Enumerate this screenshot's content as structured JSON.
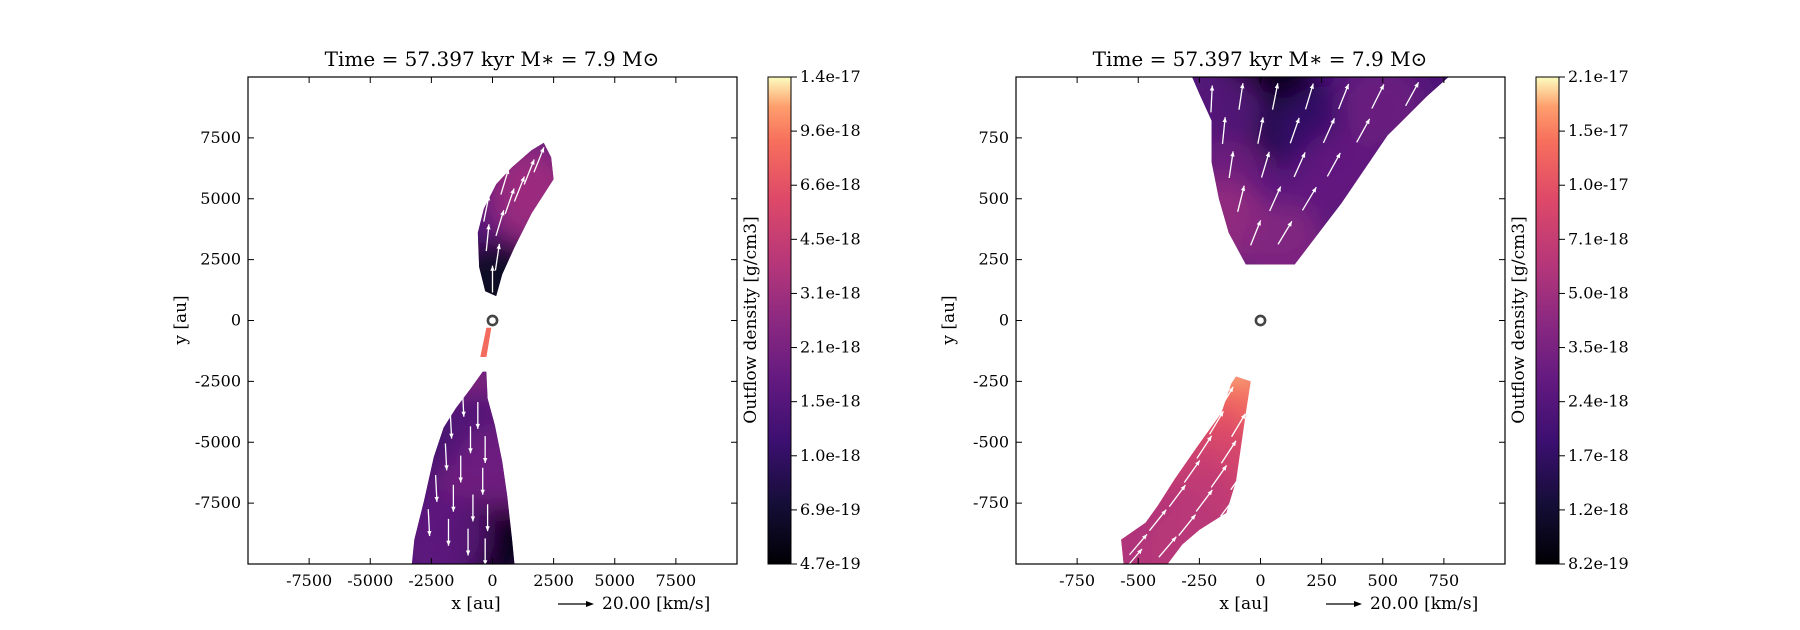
{
  "chart_data": [
    {
      "type": "heatmap",
      "subtype": "outflow-density-map-with-velocity-vectors",
      "title": "Time = 57.397 kyr    M∗ = 7.9 M⊙",
      "xlabel": "x [au]",
      "ylabel": "y [au]",
      "xlim": [
        -10000,
        10000
      ],
      "ylim": [
        -10000,
        10000
      ],
      "xticks": [
        -7500,
        -5000,
        -2500,
        0,
        2500,
        5000,
        7500
      ],
      "yticks": [
        -7500,
        -5000,
        -2500,
        0,
        2500,
        5000,
        7500
      ],
      "colorbar": {
        "label": "Outflow density [g/cm3]",
        "colormap": "magma",
        "scale": "log",
        "range": [
          4.7e-19,
          1.4e-17
        ],
        "tick_labels": [
          "4.7e-19",
          "6.9e-19",
          "1.0e-18",
          "1.5e-18",
          "2.1e-18",
          "3.1e-18",
          "4.5e-18",
          "6.6e-18",
          "9.6e-18",
          "1.4e-17"
        ]
      },
      "reference_vector": "20.00 [km/s]",
      "star_position": [
        0,
        0
      ],
      "lobes": [
        {
          "name": "north",
          "polygon": [
            [
              -300,
              1200
            ],
            [
              -550,
              2200
            ],
            [
              -600,
              3600
            ],
            [
              -350,
              4600
            ],
            [
              150,
              5600
            ],
            [
              800,
              6300
            ],
            [
              1600,
              7000
            ],
            [
              2100,
              7300
            ],
            [
              2400,
              6700
            ],
            [
              2500,
              5800
            ],
            [
              1600,
              4400
            ],
            [
              900,
              3000
            ],
            [
              400,
              1900
            ],
            [
              150,
              1000
            ]
          ],
          "densities": [
            [
              0,
              2200,
              5e-19
            ],
            [
              -100,
              3200,
              9e-19
            ],
            [
              400,
              4600,
              1.8e-18
            ],
            [
              1300,
              6000,
              2.4e-18
            ],
            [
              -400,
              4000,
              1.5e-18
            ],
            [
              1700,
              5000,
              3e-18
            ],
            [
              100,
              1500,
              6e-19
            ]
          ],
          "vectors": [
            [
              0,
              1700,
              0,
              1
            ],
            [
              200,
              2600,
              0.15,
              1
            ],
            [
              -200,
              3400,
              0.1,
              1
            ],
            [
              300,
              4000,
              0.3,
              1
            ],
            [
              -250,
              4600,
              0.2,
              1
            ],
            [
              700,
              4900,
              0.35,
              1
            ],
            [
              1100,
              5400,
              0.4,
              1
            ],
            [
              500,
              5700,
              0.3,
              1
            ],
            [
              1500,
              6100,
              0.4,
              1
            ],
            [
              1900,
              6600,
              0.4,
              1
            ]
          ]
        },
        {
          "name": "gap",
          "polygon": [
            [
              -500,
              -1500
            ],
            [
              -250,
              -300
            ],
            [
              -50,
              -300
            ],
            [
              -250,
              -1500
            ]
          ],
          "densities": [
            [
              -300,
              -900,
              8.5e-18
            ]
          ],
          "vectors": []
        },
        {
          "name": "south",
          "polygon": [
            [
              -400,
              -2100
            ],
            [
              -900,
              -2800
            ],
            [
              -1500,
              -3600
            ],
            [
              -2000,
              -4400
            ],
            [
              -2400,
              -5600
            ],
            [
              -2800,
              -7400
            ],
            [
              -3200,
              -9000
            ],
            [
              -3300,
              -10000
            ],
            [
              900,
              -10000
            ],
            [
              800,
              -9000
            ],
            [
              600,
              -7200
            ],
            [
              400,
              -5800
            ],
            [
              100,
              -4300
            ],
            [
              -200,
              -3200
            ],
            [
              -250,
              -2100
            ]
          ],
          "densities": [
            [
              -1000,
              -3500,
              2.5e-18
            ],
            [
              -1600,
              -5200,
              9e-19
            ],
            [
              -2500,
              -7000,
              1.3e-18
            ],
            [
              -400,
              -6800,
              2.2e-18
            ],
            [
              0,
              -8800,
              5e-19
            ],
            [
              -2000,
              -8800,
              1.6e-18
            ],
            [
              -700,
              -4600,
              1.4e-18
            ],
            [
              300,
              -6000,
              1.9e-18
            ]
          ],
          "vectors": [
            [
              -1200,
              -3400,
              0.05,
              -1
            ],
            [
              -600,
              -3900,
              0,
              -1
            ],
            [
              -1700,
              -4300,
              0.05,
              -1
            ],
            [
              -900,
              -4900,
              0,
              -1
            ],
            [
              -300,
              -5300,
              0,
              -1
            ],
            [
              -1900,
              -5600,
              0.05,
              -1
            ],
            [
              -1300,
              -6100,
              0,
              -1
            ],
            [
              -400,
              -6600,
              0,
              -1
            ],
            [
              -2300,
              -6900,
              0.05,
              -1
            ],
            [
              -1600,
              -7300,
              0,
              -1
            ],
            [
              -800,
              -7700,
              0,
              -1
            ],
            [
              -200,
              -8100,
              0,
              -1
            ],
            [
              -2600,
              -8300,
              0.05,
              -1
            ],
            [
              -1800,
              -8700,
              0,
              -1
            ],
            [
              -1000,
              -9100,
              0,
              -1
            ],
            [
              -300,
              -9500,
              0,
              -1
            ]
          ]
        }
      ]
    },
    {
      "type": "heatmap",
      "subtype": "outflow-density-map-with-velocity-vectors",
      "title": "Time = 57.397 kyr    M∗ = 7.9 M⊙",
      "xlabel": "x [au]",
      "ylabel": "y [au]",
      "xlim": [
        -1000,
        1000
      ],
      "ylim": [
        -1000,
        1000
      ],
      "xticks": [
        -750,
        -500,
        -250,
        0,
        250,
        500,
        750
      ],
      "yticks": [
        -750,
        -500,
        -250,
        0,
        250,
        500,
        750
      ],
      "colorbar": {
        "label": "Outflow density [g/cm3]",
        "colormap": "magma",
        "scale": "log",
        "range": [
          8.2e-19,
          2.1e-17
        ],
        "tick_labels": [
          "8.2e-19",
          "1.2e-18",
          "1.7e-18",
          "2.4e-18",
          "3.5e-18",
          "5.0e-18",
          "7.1e-18",
          "1.0e-17",
          "1.5e-17",
          "2.1e-17"
        ]
      },
      "reference_vector": "20.00 [km/s]",
      "star_position": [
        0,
        0
      ],
      "lobes": [
        {
          "name": "north",
          "polygon": [
            [
              -280,
              1000
            ],
            [
              -250,
              930
            ],
            [
              -200,
              820
            ],
            [
              -200,
              650
            ],
            [
              -170,
              500
            ],
            [
              -130,
              360
            ],
            [
              -60,
              230
            ],
            [
              140,
              230
            ],
            [
              330,
              480
            ],
            [
              520,
              760
            ],
            [
              680,
              920
            ],
            [
              770,
              1000
            ]
          ],
          "densities": [
            [
              0,
              980,
              8.2e-19
            ],
            [
              100,
              880,
              1e-18
            ],
            [
              -30,
              760,
              1.4e-18
            ],
            [
              250,
              780,
              1.8e-18
            ],
            [
              -180,
              860,
              2.4e-18
            ],
            [
              -120,
              560,
              3.2e-18
            ],
            [
              50,
              450,
              2.6e-18
            ],
            [
              330,
              600,
              2.8e-18
            ],
            [
              500,
              880,
              3e-18
            ],
            [
              -150,
              400,
              4.5e-18
            ],
            [
              100,
              300,
              3.8e-18
            ]
          ],
          "vectors": [
            [
              -200,
              910,
              0.05,
              1
            ],
            [
              -80,
              920,
              0.15,
              1
            ],
            [
              60,
              920,
              0.2,
              1
            ],
            [
              200,
              920,
              0.3,
              1
            ],
            [
              340,
              920,
              0.4,
              1
            ],
            [
              480,
              920,
              0.5,
              1
            ],
            [
              620,
              930,
              0.55,
              1
            ],
            [
              -150,
              780,
              0.1,
              1
            ],
            [
              0,
              780,
              0.2,
              1
            ],
            [
              140,
              780,
              0.35,
              1
            ],
            [
              280,
              780,
              0.45,
              1
            ],
            [
              420,
              780,
              0.55,
              1
            ],
            [
              -120,
              640,
              0.15,
              1
            ],
            [
              20,
              640,
              0.3,
              1
            ],
            [
              160,
              640,
              0.45,
              1
            ],
            [
              300,
              640,
              0.55,
              1
            ],
            [
              -80,
              500,
              0.25,
              1
            ],
            [
              60,
              500,
              0.45,
              1
            ],
            [
              200,
              500,
              0.6,
              1
            ],
            [
              -20,
              360,
              0.4,
              1
            ],
            [
              100,
              360,
              0.6,
              1
            ]
          ]
        },
        {
          "name": "south",
          "polygon": [
            [
              -100,
              -230
            ],
            [
              -40,
              -250
            ],
            [
              -60,
              -380
            ],
            [
              -80,
              -520
            ],
            [
              -100,
              -660
            ],
            [
              -140,
              -790
            ],
            [
              -250,
              -860
            ],
            [
              -320,
              -920
            ],
            [
              -380,
              -1000
            ],
            [
              -560,
              -1000
            ],
            [
              -570,
              -900
            ],
            [
              -470,
              -830
            ],
            [
              -420,
              -760
            ],
            [
              -350,
              -650
            ],
            [
              -260,
              -520
            ],
            [
              -160,
              -380
            ],
            [
              -120,
              -260
            ]
          ],
          "densities": [
            [
              -150,
              -300,
              1.8e-17
            ],
            [
              -100,
              -420,
              1.3e-17
            ],
            [
              -200,
              -500,
              1e-17
            ],
            [
              -120,
              -620,
              8.5e-18
            ],
            [
              -300,
              -650,
              7.5e-18
            ],
            [
              -230,
              -780,
              6.6e-18
            ],
            [
              -400,
              -850,
              6e-18
            ],
            [
              -500,
              -950,
              5.6e-18
            ],
            [
              -300,
              -950,
              6.2e-18
            ]
          ],
          "vectors": [
            [
              -140,
              -320,
              0.6,
              1
            ],
            [
              -180,
              -420,
              0.6,
              1
            ],
            [
              -90,
              -430,
              0.6,
              1
            ],
            [
              -230,
              -520,
              0.65,
              1
            ],
            [
              -130,
              -540,
              0.65,
              1
            ],
            [
              -280,
              -620,
              0.7,
              1
            ],
            [
              -170,
              -640,
              0.7,
              1
            ],
            [
              -90,
              -650,
              0.7,
              1
            ],
            [
              -340,
              -720,
              0.75,
              1
            ],
            [
              -230,
              -740,
              0.75,
              1
            ],
            [
              -130,
              -760,
              0.75,
              1
            ],
            [
              -420,
              -820,
              0.8,
              1
            ],
            [
              -300,
              -840,
              0.8,
              1
            ],
            [
              -190,
              -860,
              0.8,
              1
            ],
            [
              -500,
              -920,
              0.85,
              1
            ],
            [
              -380,
              -930,
              0.85,
              1
            ],
            [
              -260,
              -950,
              0.85,
              1
            ],
            [
              -520,
              -980,
              0.85,
              1
            ]
          ]
        }
      ]
    }
  ]
}
